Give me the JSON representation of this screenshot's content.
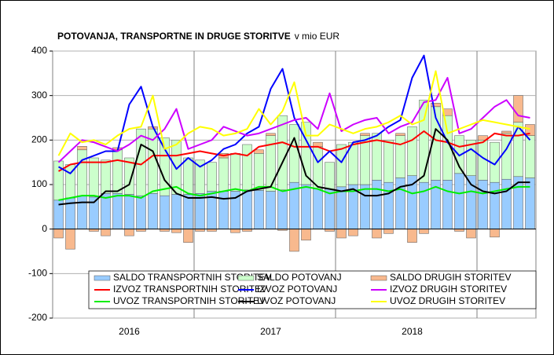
{
  "chart_data": {
    "type": "bar",
    "stacked": true,
    "title": "POTOVANJA, TRANSPORTNE IN DRUGE STORITVE",
    "title_unit": "v mio EUR",
    "categories": [
      null,
      null,
      null,
      null,
      null,
      null,
      "2016",
      null,
      null,
      null,
      null,
      null,
      null,
      null,
      null,
      null,
      null,
      null,
      "2017",
      null,
      null,
      null,
      null,
      null,
      null,
      null,
      null,
      null,
      null,
      null,
      "2018",
      null,
      null,
      null,
      null,
      null,
      null,
      null,
      null,
      null,
      null
    ],
    "ylim": [
      -200,
      400
    ],
    "yticks": [
      -200,
      -100,
      0,
      100,
      200,
      300,
      400
    ],
    "grid": true,
    "legend": "lower center",
    "series": [
      {
        "name": "SALDO TRANSPORTNIH STORITEV",
        "type": "bar",
        "color": "#99ccff",
        "values": [
          65,
          70,
          75,
          72,
          80,
          80,
          78,
          75,
          80,
          75,
          78,
          78,
          80,
          85,
          85,
          85,
          88,
          87,
          85,
          88,
          105,
          100,
          90,
          90,
          95,
          100,
          100,
          110,
          105,
          115,
          120,
          105,
          110,
          110,
          125,
          120,
          110,
          105,
          112,
          118,
          115
        ]
      },
      {
        "name": "SALDO POTOVANJ",
        "type": "bar",
        "color": "#ccffcc",
        "values": [
          88,
          75,
          103,
          88,
          75,
          98,
          82,
          150,
          145,
          130,
          122,
          82,
          75,
          65,
          75,
          85,
          102,
          83,
          125,
          167,
          130,
          140,
          95,
          60,
          95,
          95,
          110,
          105,
          95,
          95,
          110,
          185,
          165,
          145,
          85,
          80,
          90,
          90,
          103,
          122,
          95
        ]
      },
      {
        "name": "SALDO DRUGIH STORITEV",
        "type": "bar",
        "color": "#f8b98e",
        "values": [
          -20,
          -45,
          8,
          -5,
          -15,
          5,
          -15,
          -5,
          5,
          -5,
          -8,
          -30,
          -5,
          -5,
          10,
          -8,
          -5,
          8,
          5,
          -3,
          -50,
          -25,
          10,
          -5,
          -20,
          -15,
          5,
          -20,
          -10,
          5,
          -30,
          -10,
          8,
          15,
          -5,
          -20,
          10,
          -18,
          5,
          60,
          25
        ]
      },
      {
        "name": "IZVOZ TRANSPORTNIH STORITEV",
        "type": "line",
        "color": "#ff0000",
        "values": [
          130,
          145,
          150,
          150,
          150,
          155,
          150,
          145,
          165,
          165,
          165,
          170,
          175,
          170,
          165,
          170,
          165,
          185,
          190,
          195,
          185,
          185,
          185,
          175,
          180,
          190,
          195,
          200,
          195,
          190,
          200,
          220,
          200,
          195,
          185,
          190,
          195,
          215,
          210,
          210,
          215
        ]
      },
      {
        "name": "IZVOZ POTOVANJ",
        "type": "line",
        "color": "#0000ff",
        "values": [
          140,
          125,
          155,
          165,
          175,
          175,
          280,
          320,
          230,
          180,
          135,
          160,
          140,
          155,
          180,
          190,
          215,
          230,
          315,
          360,
          250,
          200,
          150,
          175,
          150,
          195,
          200,
          210,
          230,
          245,
          340,
          390,
          250,
          195,
          165,
          180,
          160,
          145,
          180,
          230,
          200
        ]
      },
      {
        "name": "IZVOZ DRUGIH STORITEV",
        "type": "line",
        "color": "#cc00ff",
        "values": [
          150,
          175,
          200,
          195,
          185,
          175,
          190,
          210,
          200,
          225,
          270,
          180,
          190,
          200,
          230,
          220,
          210,
          215,
          225,
          235,
          245,
          250,
          225,
          305,
          220,
          235,
          245,
          250,
          215,
          230,
          240,
          285,
          290,
          340,
          215,
          225,
          250,
          275,
          290,
          255,
          250
        ]
      },
      {
        "name": "UVOZ TRANSPORTNIH STORITEV",
        "type": "line",
        "color": "#00ee00",
        "values": [
          65,
          70,
          75,
          75,
          70,
          75,
          75,
          70,
          85,
          90,
          95,
          80,
          75,
          80,
          85,
          90,
          85,
          95,
          95,
          85,
          90,
          95,
          90,
          80,
          85,
          85,
          90,
          90,
          85,
          90,
          80,
          85,
          95,
          85,
          80,
          85,
          80,
          85,
          90,
          95,
          95
        ]
      },
      {
        "name": "UVOZ POTOVANJ",
        "type": "line",
        "color": "#000000",
        "values": [
          55,
          58,
          60,
          60,
          85,
          85,
          100,
          190,
          175,
          110,
          80,
          70,
          70,
          72,
          68,
          70,
          85,
          90,
          95,
          150,
          205,
          120,
          95,
          90,
          85,
          90,
          75,
          75,
          80,
          95,
          100,
          120,
          225,
          200,
          140,
          100,
          85,
          80,
          85,
          105,
          105
        ]
      },
      {
        "name": "UVOZ DRUGIH STORITEV",
        "type": "line",
        "color": "#ffff00",
        "values": [
          165,
          215,
          195,
          200,
          190,
          210,
          225,
          230,
          300,
          180,
          190,
          215,
          230,
          225,
          210,
          215,
          225,
          270,
          235,
          265,
          330,
          210,
          210,
          235,
          225,
          215,
          225,
          230,
          240,
          255,
          235,
          245,
          355,
          215,
          225,
          235,
          245,
          240,
          235,
          230,
          225
        ]
      }
    ]
  }
}
